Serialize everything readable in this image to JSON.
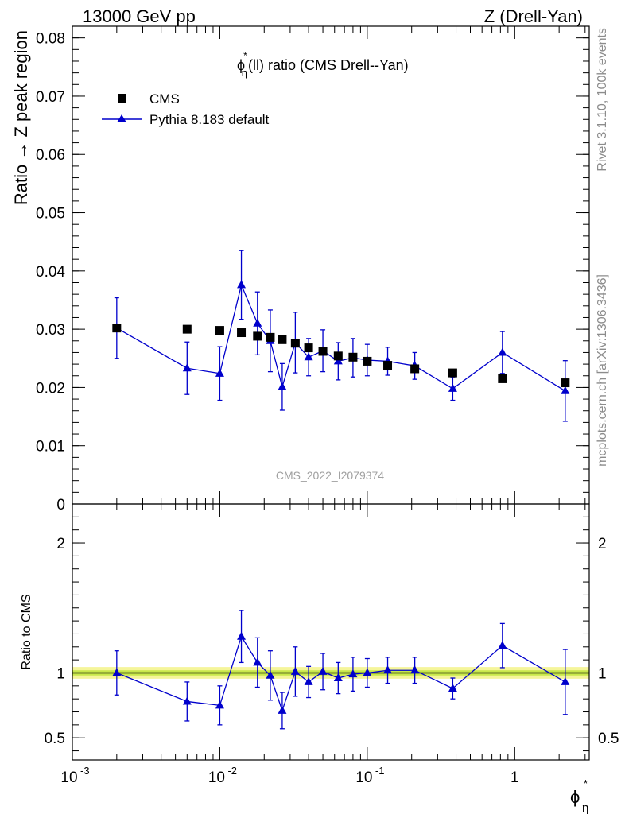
{
  "header": {
    "energy_label": "13000 GeV pp",
    "process_label": "Z (Drell-Yan)"
  },
  "side_labels": {
    "rivet": "Rivet 3.1.10,  100k events",
    "mcplots": "mcplots.cern.ch [arXiv:1306.3436]"
  },
  "watermark": "CMS_2022_I2079374",
  "colors": {
    "data": "#000000",
    "mc": "#0000cc",
    "band_inner": "#c8e84a",
    "band_outer": "#f5f59a"
  },
  "chart_data": [
    {
      "type": "scatter",
      "title_main": "ϕ",
      "title_sup": "*",
      "title_sub": "η",
      "title_rest": "(ll) ratio (CMS Drell--Yan)",
      "ylabel": "Ratio → Z peak region",
      "xscale": "log",
      "xlim": [
        0.001,
        3.2
      ],
      "ylim": [
        0,
        0.082
      ],
      "yticks": [
        0,
        0.01,
        0.02,
        0.03,
        0.04,
        0.05,
        0.06,
        0.07,
        0.08
      ],
      "ytick_labels": [
        "0",
        "0.01",
        "0.02",
        "0.03",
        "0.04",
        "0.05",
        "0.06",
        "0.07",
        "0.08"
      ],
      "legend": {
        "placement": "top-left",
        "entries": [
          "CMS",
          "Pythia 8.183 default"
        ]
      },
      "series": [
        {
          "name": "CMS",
          "marker": "square",
          "x": [
            0.002,
            0.006,
            0.01,
            0.014,
            0.018,
            0.022,
            0.0265,
            0.0325,
            0.04,
            0.05,
            0.0635,
            0.08,
            0.1,
            0.1375,
            0.21,
            0.38,
            0.825,
            2.2
          ],
          "y": [
            0.0302,
            0.03,
            0.0298,
            0.0294,
            0.0288,
            0.0286,
            0.0282,
            0.0276,
            0.0268,
            0.0262,
            0.0254,
            0.0252,
            0.0245,
            0.0238,
            0.0232,
            0.0225,
            0.0215,
            0.0208
          ]
        },
        {
          "name": "Pythia 8.183 default",
          "marker": "triangle",
          "x": [
            0.002,
            0.006,
            0.01,
            0.014,
            0.018,
            0.022,
            0.0265,
            0.0325,
            0.04,
            0.05,
            0.0635,
            0.08,
            0.1,
            0.1375,
            0.21,
            0.38,
            0.825,
            2.2
          ],
          "y": [
            0.0302,
            0.0233,
            0.0224,
            0.0376,
            0.031,
            0.028,
            0.0201,
            0.0277,
            0.0252,
            0.0263,
            0.0245,
            0.0251,
            0.0247,
            0.0245,
            0.0237,
            0.0198,
            0.026,
            0.0194
          ],
          "err": [
            0.0052,
            0.0045,
            0.0046,
            0.0059,
            0.0054,
            0.0053,
            0.004,
            0.0052,
            0.0032,
            0.0036,
            0.0032,
            0.0033,
            0.0027,
            0.0024,
            0.0023,
            0.002,
            0.0036,
            0.0052
          ]
        }
      ]
    },
    {
      "type": "scatter",
      "ylabel": "Ratio to CMS",
      "xlabel_main": "ϕ",
      "xlabel_sup": "*",
      "xlabel_sub": "η",
      "xscale": "log",
      "xlim": [
        0.001,
        3.2
      ],
      "ylim": [
        0.33,
        2.3
      ],
      "yticks": [
        0.5,
        1,
        2
      ],
      "ytick_labels": [
        "0.5",
        "1",
        "2"
      ],
      "xtick_labels": [
        "10^-3",
        "10^-2",
        "10^-1",
        "1"
      ],
      "band": {
        "inner": 0.02,
        "outer": 0.045
      },
      "series": [
        {
          "name": "Pythia 8.183 default",
          "x": [
            0.002,
            0.006,
            0.01,
            0.014,
            0.018,
            0.022,
            0.0265,
            0.0325,
            0.04,
            0.05,
            0.0635,
            0.08,
            0.1,
            0.1375,
            0.21,
            0.38,
            0.825,
            2.2
          ],
          "y": [
            1.0,
            0.78,
            0.75,
            1.28,
            1.08,
            0.98,
            0.71,
            1.01,
            0.93,
            1.01,
            0.96,
            0.99,
            1.0,
            1.02,
            1.02,
            0.88,
            1.21,
            0.93
          ],
          "err": [
            0.17,
            0.15,
            0.15,
            0.2,
            0.19,
            0.19,
            0.14,
            0.19,
            0.12,
            0.14,
            0.12,
            0.13,
            0.11,
            0.1,
            0.1,
            0.08,
            0.17,
            0.25
          ]
        }
      ]
    }
  ]
}
